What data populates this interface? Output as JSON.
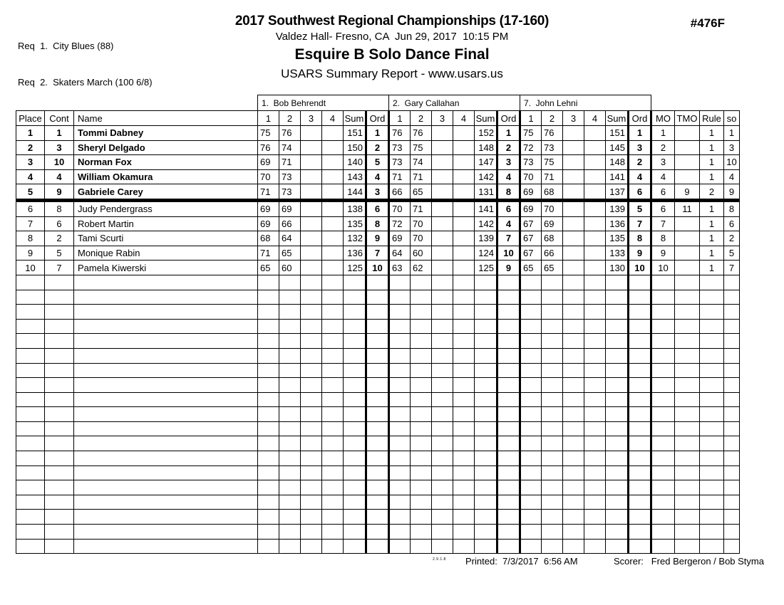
{
  "report": {
    "req1": "Req  1.  City Blues (88)",
    "req2": "Req  2.  Skaters March (100 6/8)",
    "title": "2017 Southwest Regional Championships (17-160)",
    "venue_line": "Valdez Hall- Fresno, CA  Jun 29, 2017  10:15 PM",
    "event_title": "Esquire B Solo Dance Final",
    "report_type": "USARS Summary Report - www.usars.us",
    "event_number": "#476F",
    "footer": {
      "version": "2.9.1.8",
      "printed": "Printed:  7/3/2017  6:56 AM",
      "scorer": "Scorer:   Fred Bergeron / Bob Styma"
    }
  },
  "table": {
    "judges": [
      "1.  Bob Behrendt",
      "2.  Gary Callahan",
      "7.  John Lehni"
    ],
    "left_headers": [
      "Place",
      "Cont",
      "Name"
    ],
    "mark_headers": [
      "1",
      "2",
      "3",
      "4",
      "Sum",
      "Ord"
    ],
    "right_headers": [
      "MO",
      "TMO",
      "Rule",
      "so"
    ],
    "empty_row_count": 19,
    "rows": [
      {
        "place": "1",
        "cont": "1",
        "name": "Tommi Dabney",
        "featured": true,
        "judges": [
          [
            "75",
            "76",
            "",
            "",
            "151",
            "1"
          ],
          [
            "76",
            "76",
            "",
            "",
            "152",
            "1"
          ],
          [
            "75",
            "76",
            "",
            "",
            "151",
            "1"
          ]
        ],
        "mo": "1",
        "tmo": "",
        "rule": "1",
        "so": "1"
      },
      {
        "place": "2",
        "cont": "3",
        "name": "Sheryl Delgado",
        "featured": true,
        "judges": [
          [
            "76",
            "74",
            "",
            "",
            "150",
            "2"
          ],
          [
            "73",
            "75",
            "",
            "",
            "148",
            "2"
          ],
          [
            "72",
            "73",
            "",
            "",
            "145",
            "3"
          ]
        ],
        "mo": "2",
        "tmo": "",
        "rule": "1",
        "so": "3"
      },
      {
        "place": "3",
        "cont": "10",
        "name": "Norman Fox",
        "featured": true,
        "judges": [
          [
            "69",
            "71",
            "",
            "",
            "140",
            "5"
          ],
          [
            "73",
            "74",
            "",
            "",
            "147",
            "3"
          ],
          [
            "73",
            "75",
            "",
            "",
            "148",
            "2"
          ]
        ],
        "mo": "3",
        "tmo": "",
        "rule": "1",
        "so": "10"
      },
      {
        "place": "4",
        "cont": "4",
        "name": "William Okamura",
        "featured": true,
        "judges": [
          [
            "70",
            "73",
            "",
            "",
            "143",
            "4"
          ],
          [
            "71",
            "71",
            "",
            "",
            "142",
            "4"
          ],
          [
            "70",
            "71",
            "",
            "",
            "141",
            "4"
          ]
        ],
        "mo": "4",
        "tmo": "",
        "rule": "1",
        "so": "4"
      },
      {
        "place": "5",
        "cont": "9",
        "name": "Gabriele Carey",
        "featured": true,
        "cut_line_below": true,
        "judges": [
          [
            "71",
            "73",
            "",
            "",
            "144",
            "3"
          ],
          [
            "66",
            "65",
            "",
            "",
            "131",
            "8"
          ],
          [
            "69",
            "68",
            "",
            "",
            "137",
            "6"
          ]
        ],
        "mo": "6",
        "tmo": "9",
        "rule": "2",
        "so": "9"
      },
      {
        "place": "6",
        "cont": "8",
        "name": "Judy Pendergrass",
        "judges": [
          [
            "69",
            "69",
            "",
            "",
            "138",
            "6"
          ],
          [
            "70",
            "71",
            "",
            "",
            "141",
            "6"
          ],
          [
            "69",
            "70",
            "",
            "",
            "139",
            "5"
          ]
        ],
        "mo": "6",
        "tmo": "11",
        "rule": "1",
        "so": "8"
      },
      {
        "place": "7",
        "cont": "6",
        "name": "Robert Martin",
        "judges": [
          [
            "69",
            "66",
            "",
            "",
            "135",
            "8"
          ],
          [
            "72",
            "70",
            "",
            "",
            "142",
            "4"
          ],
          [
            "67",
            "69",
            "",
            "",
            "136",
            "7"
          ]
        ],
        "mo": "7",
        "tmo": "",
        "rule": "1",
        "so": "6"
      },
      {
        "place": "8",
        "cont": "2",
        "name": "Tami Scurti",
        "judges": [
          [
            "68",
            "64",
            "",
            "",
            "132",
            "9"
          ],
          [
            "69",
            "70",
            "",
            "",
            "139",
            "7"
          ],
          [
            "67",
            "68",
            "",
            "",
            "135",
            "8"
          ]
        ],
        "mo": "8",
        "tmo": "",
        "rule": "1",
        "so": "2"
      },
      {
        "place": "9",
        "cont": "5",
        "name": "Monique Rabin",
        "judges": [
          [
            "71",
            "65",
            "",
            "",
            "136",
            "7"
          ],
          [
            "64",
            "60",
            "",
            "",
            "124",
            "10"
          ],
          [
            "67",
            "66",
            "",
            "",
            "133",
            "9"
          ]
        ],
        "mo": "9",
        "tmo": "",
        "rule": "1",
        "so": "5"
      },
      {
        "place": "10",
        "cont": "7",
        "name": "Pamela Kiwerski",
        "judges": [
          [
            "65",
            "60",
            "",
            "",
            "125",
            "10"
          ],
          [
            "63",
            "62",
            "",
            "",
            "125",
            "9"
          ],
          [
            "65",
            "65",
            "",
            "",
            "130",
            "10"
          ]
        ],
        "mo": "10",
        "tmo": "",
        "rule": "1",
        "so": "7"
      }
    ]
  }
}
